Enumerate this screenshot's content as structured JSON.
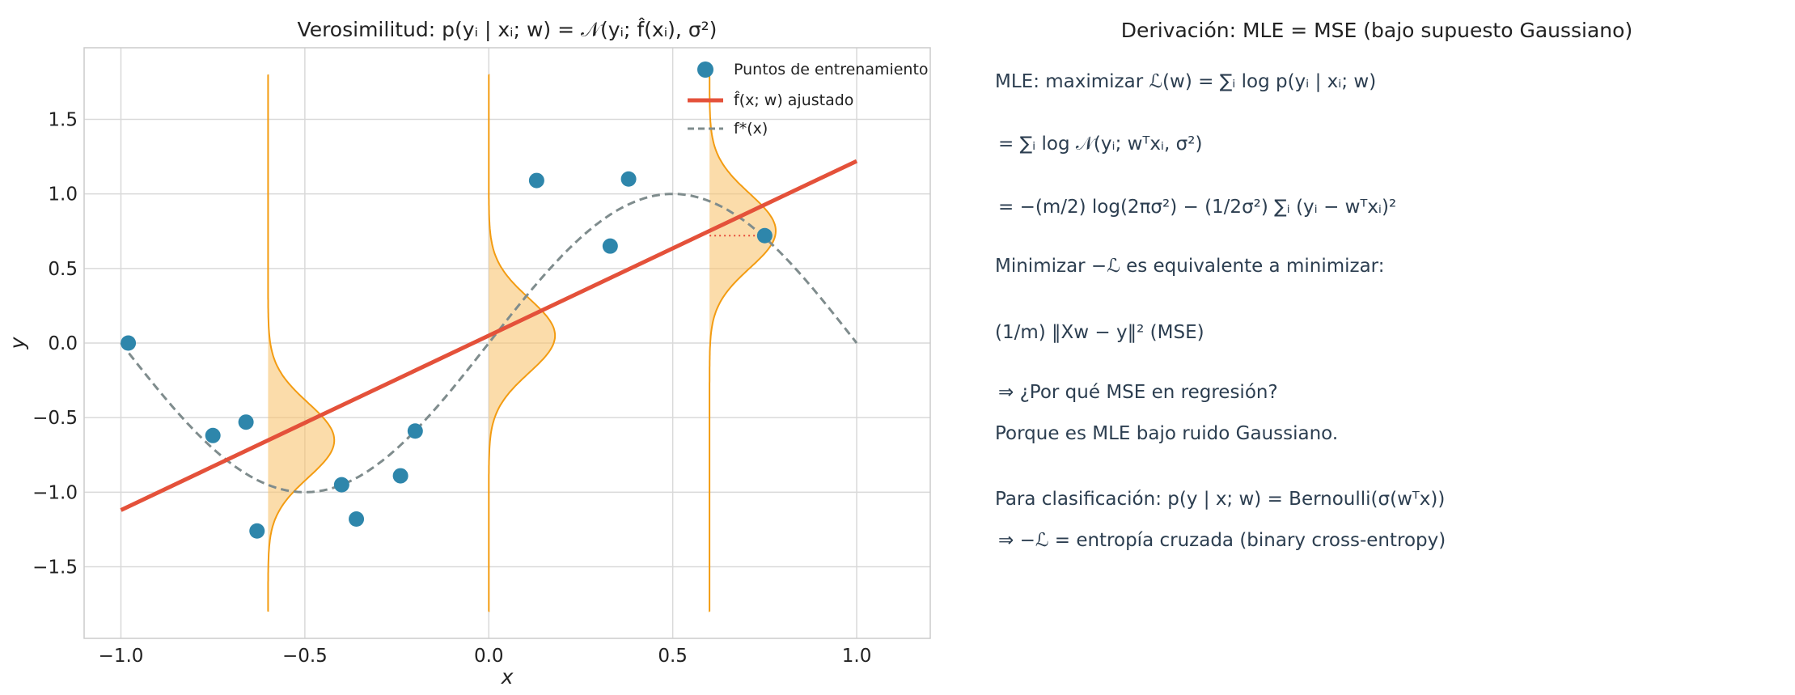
{
  "chart_data": {
    "type": "scatter",
    "title": "Verosimilitud: p(yᵢ | xᵢ; w) = 𝒩(yᵢ; f̂(xᵢ), σ²)",
    "xlabel": "x",
    "ylabel": "y",
    "xlim": [
      -1.1,
      1.2
    ],
    "ylim": [
      -1.98,
      1.98
    ],
    "xticks": [
      -1.0,
      -0.5,
      0.0,
      0.5,
      1.0
    ],
    "xtick_labels": [
      "−1.0",
      "−0.5",
      "0.0",
      "0.5",
      "1.0"
    ],
    "yticks": [
      -1.5,
      -1.0,
      -0.5,
      0.0,
      0.5,
      1.0,
      1.5
    ],
    "ytick_labels": [
      "−1.5",
      "−1.0",
      "−0.5",
      "0.0",
      "0.5",
      "1.0",
      "1.5"
    ],
    "grid": true,
    "legend_position": "top-right",
    "legend": [
      "Puntos de entrenamiento",
      "f̂(x; w) ajustado",
      "f*(x)"
    ],
    "points": {
      "name": "Puntos de entrenamiento",
      "color": "#2e86ab",
      "x": [
        -0.98,
        -0.75,
        -0.66,
        -0.63,
        -0.4,
        -0.36,
        -0.24,
        -0.2,
        0.13,
        0.33,
        0.38,
        0.75
      ],
      "y": [
        0.0,
        -0.62,
        -0.53,
        -1.26,
        -0.95,
        -1.18,
        -0.89,
        -0.59,
        1.09,
        0.65,
        1.1,
        0.72
      ]
    },
    "fitted_line": {
      "name": "f̂(x; w) ajustado",
      "color": "#e4513a",
      "x": [
        -1.0,
        1.0
      ],
      "y": [
        -1.12,
        1.22
      ]
    },
    "true_function": {
      "name": "f*(x)",
      "color": "#7f8c8d",
      "formula": "sin(pi x)",
      "x_range": [
        -1.0,
        1.0
      ]
    },
    "gaussians": {
      "color": "#f39c12",
      "fill": "#f8c471",
      "sigma": 0.25,
      "peak_width_x": 0.18,
      "y_range": [
        -1.8,
        1.8
      ],
      "centers_x": [
        -0.6,
        0.0,
        0.6
      ],
      "residual_marker": {
        "x_start": 0.6,
        "x_end": 0.75,
        "y": 0.72,
        "color": "#e74c3c"
      }
    }
  },
  "derivation": {
    "title": "Derivación: MLE = MSE (bajo supuesto Gaussiano)",
    "line1": "MLE: maximizar ℒ(w) = ∑ᵢ log p(yᵢ | xᵢ; w)",
    "line2": "= ∑ᵢ log 𝒩(yᵢ; wᵀxᵢ, σ²)",
    "line3": "= −(m/2) log(2πσ²) − (1/2σ²) ∑ᵢ (yᵢ − wᵀxᵢ)²",
    "line4": "Minimizar −ℒ es equivalente a minimizar:",
    "line5": "(1/m) ‖Xw − y‖² (MSE)",
    "line6": "⇒ ¿Por qué MSE en regresión?",
    "line7": "Porque es MLE bajo ruido Gaussiano.",
    "line8": "Para clasificación: p(y | x; w) = Bernoulli(σ(wᵀx))",
    "line9": "⇒ −ℒ = entropía cruzada (binary cross-entropy)"
  }
}
